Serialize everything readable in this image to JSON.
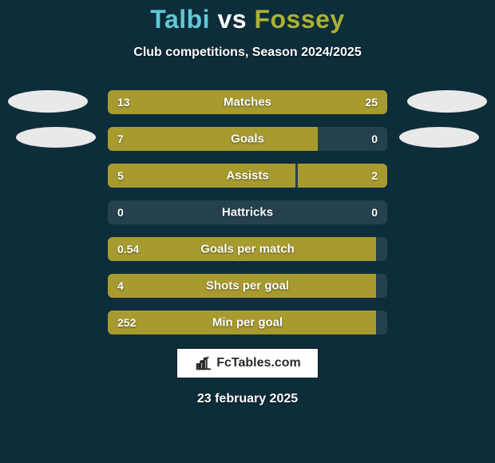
{
  "background_color": "#0e2d3a",
  "title": {
    "player1": "Talbi",
    "vs": "vs",
    "player2": "Fossey",
    "player1_color": "#5fc9d6",
    "vs_color": "#ffffff",
    "player2_color": "#aab134"
  },
  "subtitle": {
    "text": "Club competitions, Season 2024/2025",
    "color": "#ffffff"
  },
  "ellipses": {
    "left1_color": "#e9e9e9",
    "left2_color": "#e9e9e9",
    "right1_color": "#e9e9e9",
    "right2_color": "#e9e9e9"
  },
  "bars": {
    "label_color": "#ffffff",
    "value_color": "#ffffff",
    "left_fill": "#a79b2f",
    "right_fill": "#a79b2f",
    "track_color": "#24414d",
    "rows": [
      {
        "label": "Matches",
        "left_val": "13",
        "right_val": "25",
        "left_pct": 30,
        "right_pct": 70
      },
      {
        "label": "Goals",
        "left_val": "7",
        "right_val": "0",
        "left_pct": 75,
        "right_pct": 0
      },
      {
        "label": "Assists",
        "left_val": "5",
        "right_val": "2",
        "left_pct": 67,
        "right_pct": 32
      },
      {
        "label": "Hattricks",
        "left_val": "0",
        "right_val": "0",
        "left_pct": 0,
        "right_pct": 0
      },
      {
        "label": "Goals per match",
        "left_val": "0.54",
        "right_val": "",
        "left_pct": 96,
        "right_pct": 0
      },
      {
        "label": "Shots per goal",
        "left_val": "4",
        "right_val": "",
        "left_pct": 96,
        "right_pct": 0
      },
      {
        "label": "Min per goal",
        "left_val": "252",
        "right_val": "",
        "left_pct": 96,
        "right_pct": 0
      }
    ]
  },
  "logo": {
    "box_bg": "#ffffff",
    "box_border": "#0b2731",
    "icon_color": "#2a2a2a",
    "text": "FcTables.com",
    "text_color": "#2a2a2a"
  },
  "date": {
    "text": "23 february 2025",
    "color": "#ffffff"
  }
}
